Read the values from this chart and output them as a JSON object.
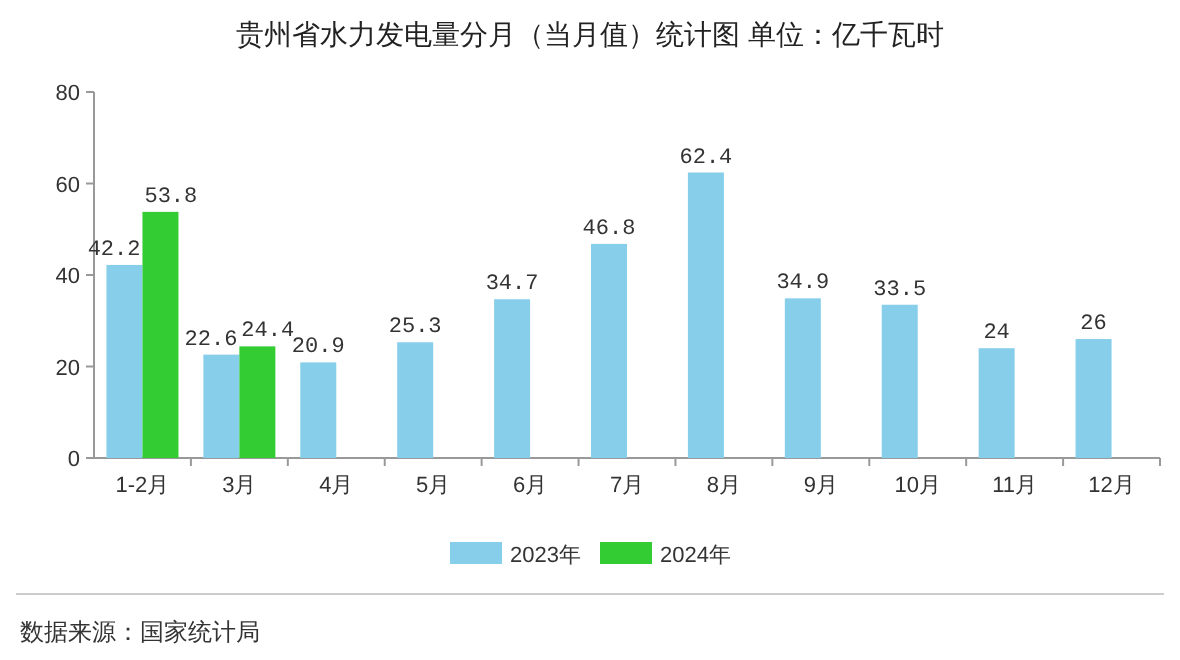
{
  "chart_data": {
    "type": "bar",
    "title": "贵州省水力发电量分月（当月值）统计图 单位：亿千瓦时",
    "categories": [
      "1-2月",
      "3月",
      "4月",
      "5月",
      "6月",
      "7月",
      "8月",
      "9月",
      "10月",
      "11月",
      "12月"
    ],
    "series": [
      {
        "name": "2023年",
        "color": "#87ceeb",
        "values": [
          42.2,
          22.6,
          20.9,
          25.3,
          34.7,
          46.8,
          62.4,
          34.9,
          33.5,
          24,
          26
        ]
      },
      {
        "name": "2024年",
        "color": "#33cc33",
        "values": [
          53.8,
          24.4,
          null,
          null,
          null,
          null,
          null,
          null,
          null,
          null,
          null
        ]
      }
    ],
    "ylim": [
      0,
      80
    ],
    "yticks": [
      0,
      20,
      40,
      60,
      80
    ],
    "data_labels": true,
    "legend": "bottom",
    "grid": false,
    "annotations": [
      "数据来源：国家统计局"
    ]
  }
}
